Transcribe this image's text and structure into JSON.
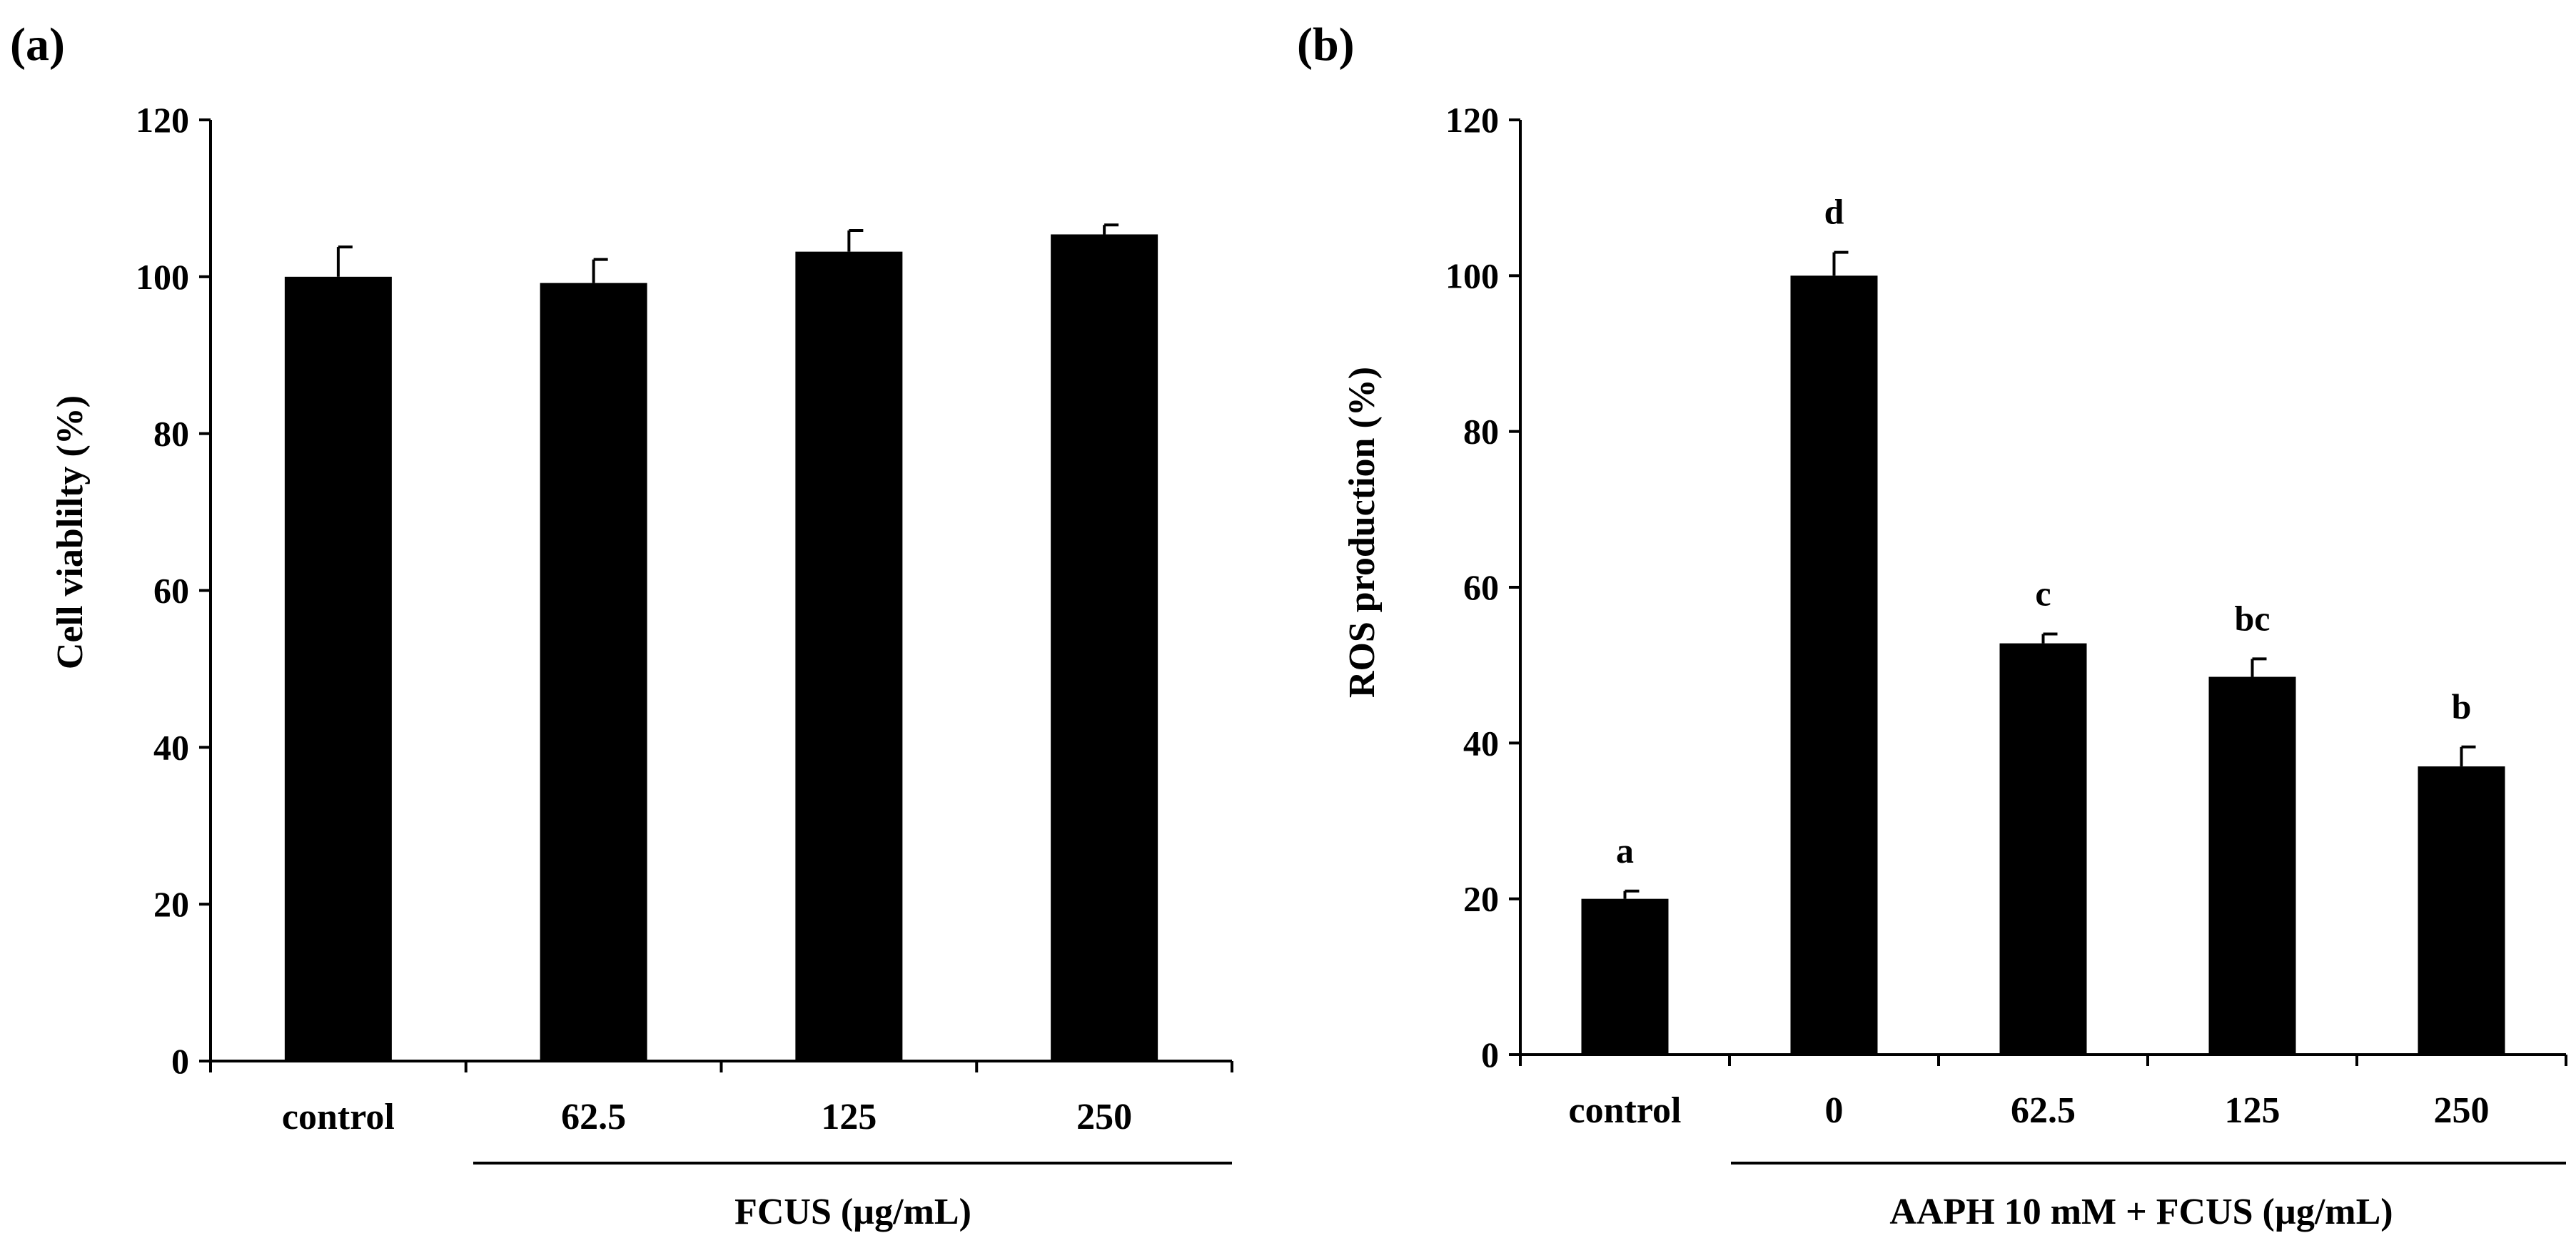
{
  "colors": {
    "bar": "#000000",
    "axis": "#000000",
    "background": "#ffffff"
  },
  "chart_data": [
    {
      "type": "bar",
      "panel_label": "(a)",
      "title": "",
      "ylabel": "Cell viablilty (%)",
      "xlabel": "",
      "group_label": "FCUS (µg/mL)",
      "categories": [
        "control",
        "62.5",
        "125",
        "250"
      ],
      "series": [
        {
          "name": "Cell viability",
          "values": [
            100,
            99.2,
            103.2,
            105.4
          ],
          "errors": [
            3.8,
            3.0,
            2.7,
            1.2
          ]
        }
      ],
      "letters": [],
      "ylim": [
        0,
        120
      ],
      "yticks": [
        "0",
        "20",
        "40",
        "60",
        "80",
        "100",
        "120"
      ],
      "grid": false,
      "legend": "none"
    },
    {
      "type": "bar",
      "panel_label": "(b)",
      "title": "",
      "ylabel": "ROS production (%)",
      "xlabel": "",
      "group_label": "AAPH 10 mM + FCUS (µg/mL)",
      "categories": [
        "control",
        "0",
        "62.5",
        "125",
        "250"
      ],
      "series": [
        {
          "name": "ROS production",
          "values": [
            20,
            100,
            52.8,
            48.5,
            37.0
          ],
          "errors": [
            1.0,
            3.0,
            1.2,
            2.3,
            2.5
          ]
        }
      ],
      "letters": [
        "a",
        "d",
        "c",
        "bc",
        "b"
      ],
      "ylim": [
        0,
        120
      ],
      "yticks": [
        "0",
        "20",
        "40",
        "60",
        "80",
        "100",
        "120"
      ],
      "grid": false,
      "legend": "none"
    }
  ]
}
